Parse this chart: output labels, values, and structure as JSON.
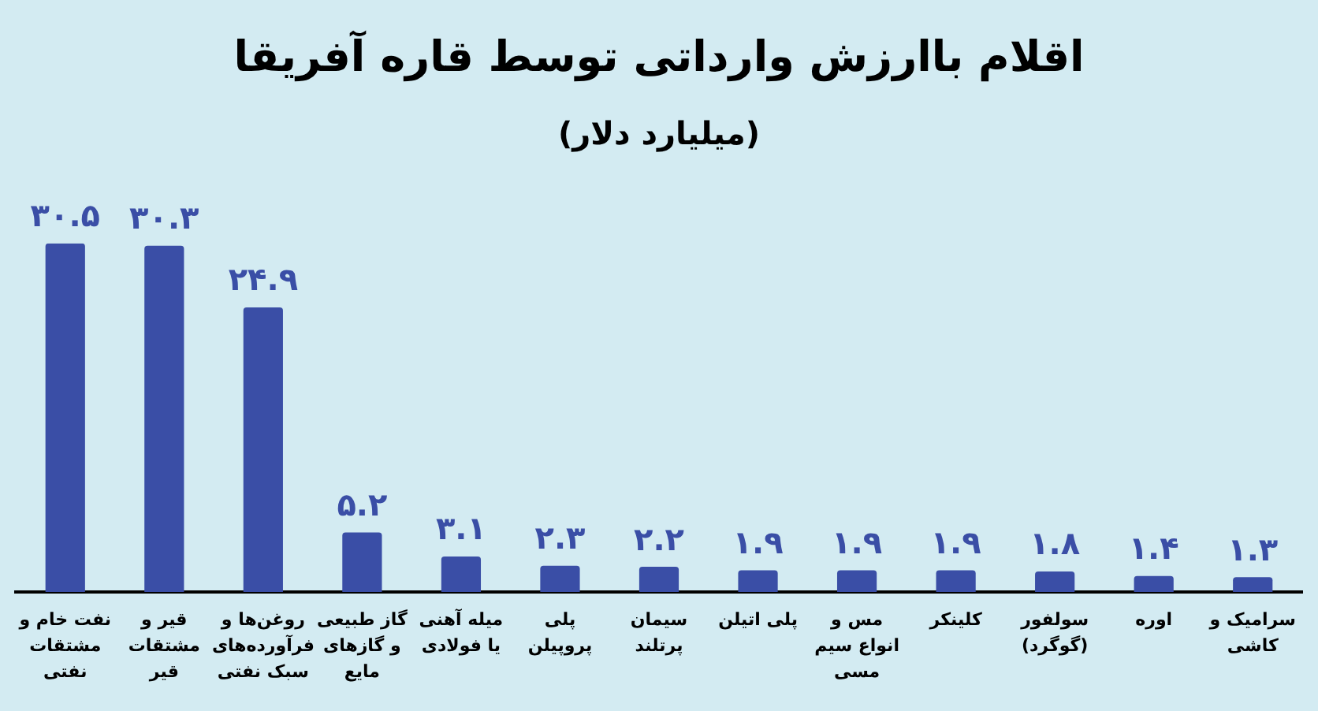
{
  "chart_data": {
    "type": "bar",
    "title": "اقلام باارزش وارداتی توسط قاره آفریقا",
    "subtitle": "(میلیارد دلار)",
    "categories": [
      "نفت خام و مشتقات نفتی",
      "قیر و مشتقات قیر",
      "روغن‌ها و فرآورده‌های سبک نفتی",
      "گاز طبیعی و گازهای مایع",
      "میله آهنی یا فولادی",
      "پلی پروپیلن",
      "سیمان پرتلند",
      "پلی اتیلن",
      "مس و انواع سیم مسی",
      "کلینکر",
      "سولفور (گوگرد)",
      "اوره",
      "سرامیک و کاشی"
    ],
    "values": [
      30.5,
      30.3,
      24.9,
      5.2,
      3.1,
      2.3,
      2.2,
      1.9,
      1.9,
      1.9,
      1.8,
      1.4,
      1.3
    ],
    "value_labels": [
      "۳۰.۵",
      "۳۰.۳",
      "۲۴.۹",
      "۵.۲",
      "۳.۱",
      "۲.۳",
      "۲.۲",
      "۱.۹",
      "۱.۹",
      "۱.۹",
      "۱.۸",
      "۱.۴",
      "۱.۳"
    ],
    "color": "#3a4ea6",
    "tick_labels": "x"
  }
}
